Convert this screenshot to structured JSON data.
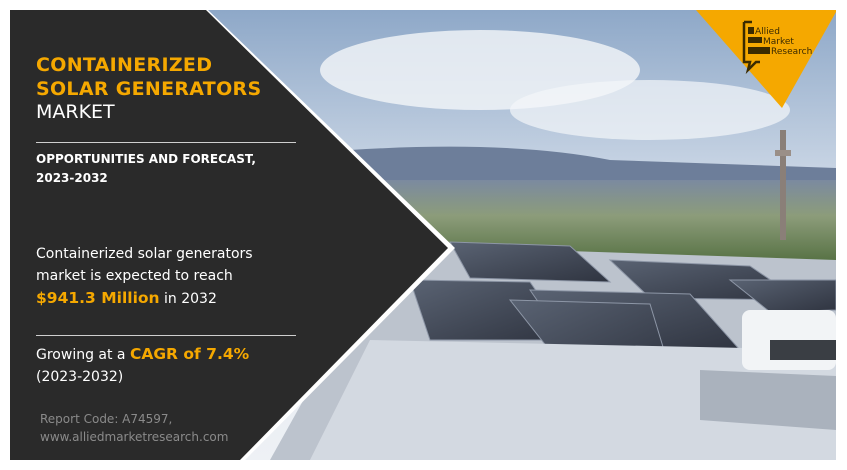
{
  "title": {
    "line1": "CONTAINERIZED",
    "line2": "SOLAR GENERATORS",
    "line3": "MARKET"
  },
  "subtitle": "OPPORTUNITIES AND FORECAST, 2023-2032",
  "market": {
    "text_before": "Containerized solar generators market is expected to reach",
    "value": "$941.3 Million",
    "text_after": "in 2032"
  },
  "growth": {
    "text_before": "Growing at a",
    "value": "CAGR of 7.4%",
    "period": "(2023-2032)"
  },
  "footer": {
    "report_code": "Report Code: A74597,",
    "website": "www.alliedmarketresearch.com"
  },
  "logo": {
    "lines": [
      "Allied",
      "Market",
      "Research"
    ]
  },
  "colors": {
    "accent": "#f5a800",
    "panel": "#2a2a2a"
  }
}
